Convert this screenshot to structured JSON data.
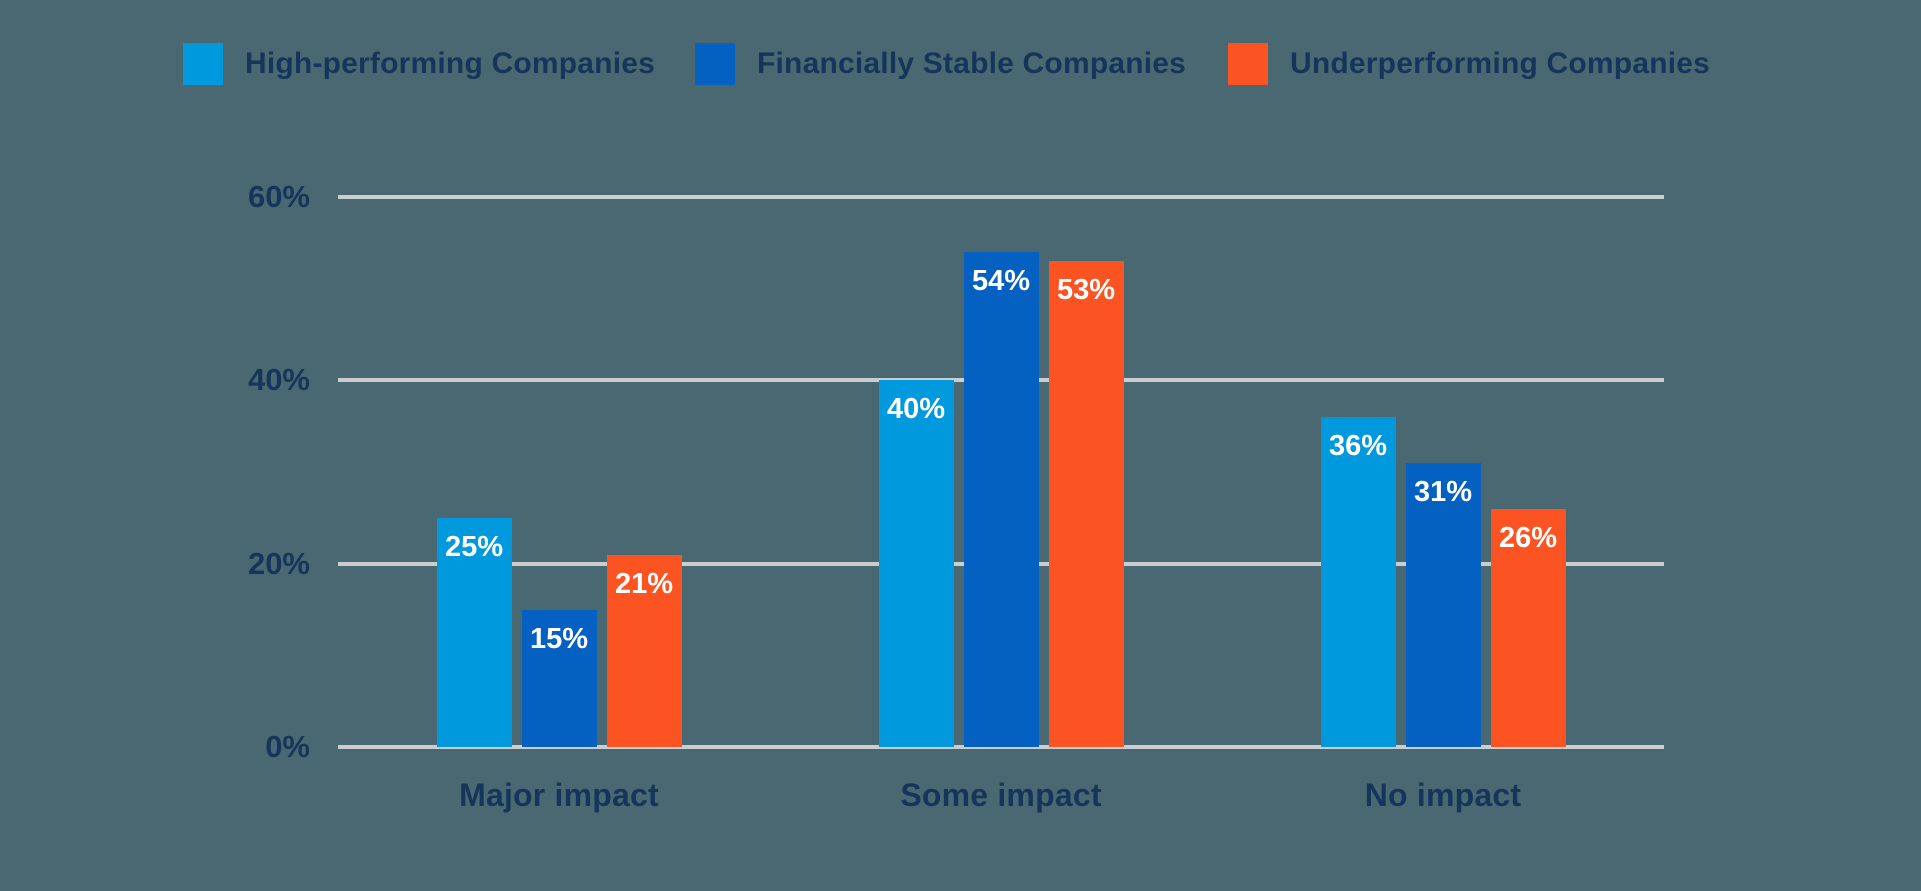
{
  "colors": {
    "background": "#4A6871",
    "text_navy": "#15365A",
    "gridline": "#C9CED3",
    "bar_label": "#FFFFFF",
    "series_light_blue": "#0099DE",
    "series_dark_blue": "#0561C1",
    "series_orange": "#FB5422"
  },
  "legend": {
    "items": [
      {
        "label": "High-performing Companies",
        "color": "#0099DE"
      },
      {
        "label": "Financially Stable Companies",
        "color": "#0561C1"
      },
      {
        "label": "Underperforming Companies",
        "color": "#FB5422"
      }
    ]
  },
  "chart_data": {
    "type": "bar",
    "title": "",
    "categories": [
      "Major impact",
      "Some impact",
      "No impact"
    ],
    "series": [
      {
        "name": "High-performing Companies",
        "color": "#0099DE",
        "values": [
          25,
          40,
          36
        ]
      },
      {
        "name": "Financially Stable Companies",
        "color": "#0561C1",
        "values": [
          15,
          54,
          31
        ]
      },
      {
        "name": "Underperforming Companies",
        "color": "#FB5422",
        "values": [
          21,
          53,
          26
        ]
      }
    ],
    "data_label_suffix": "%",
    "xlabel": "",
    "ylabel": "",
    "ylim": [
      0,
      60
    ],
    "yticks": [
      0,
      20,
      40,
      60
    ],
    "ytick_labels": [
      "0%",
      "20%",
      "40%",
      "60%"
    ],
    "grid": true,
    "legend_position": "top"
  }
}
